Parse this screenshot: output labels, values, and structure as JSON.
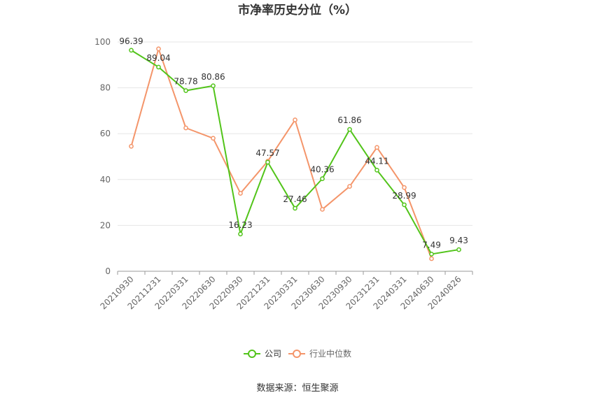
{
  "chart_data": {
    "type": "line",
    "title": "市净率历史分位（%）",
    "xlabel": "",
    "ylabel": "",
    "ylim": [
      0,
      100
    ],
    "yticks": [
      0,
      20,
      40,
      60,
      80,
      100
    ],
    "categories": [
      "20210930",
      "20211231",
      "20220331",
      "20220630",
      "20220930",
      "20221231",
      "20230331",
      "20230630",
      "20230930",
      "20231231",
      "20240331",
      "20240630",
      "20240826"
    ],
    "series": [
      {
        "name": "公司",
        "color": "#52c41a",
        "values": [
          96.39,
          89.04,
          78.78,
          80.86,
          16.23,
          47.57,
          27.46,
          40.36,
          61.86,
          44.11,
          28.99,
          7.49,
          9.43
        ],
        "labels": [
          "96.39",
          "89.04",
          "78.78",
          "80.86",
          "16.23",
          "47.57",
          "27.46",
          "40.36",
          "61.86",
          "44.11",
          "28.99",
          "7.49",
          "9.43"
        ]
      },
      {
        "name": "行业中位数",
        "color": "#f4956a",
        "values": [
          54.5,
          97,
          62.5,
          58,
          34,
          48,
          66,
          27,
          37,
          54,
          36.5,
          5.5,
          null
        ]
      }
    ],
    "grid": true,
    "legend": "bottom-center"
  },
  "source_text": "数据来源：恒生聚源"
}
